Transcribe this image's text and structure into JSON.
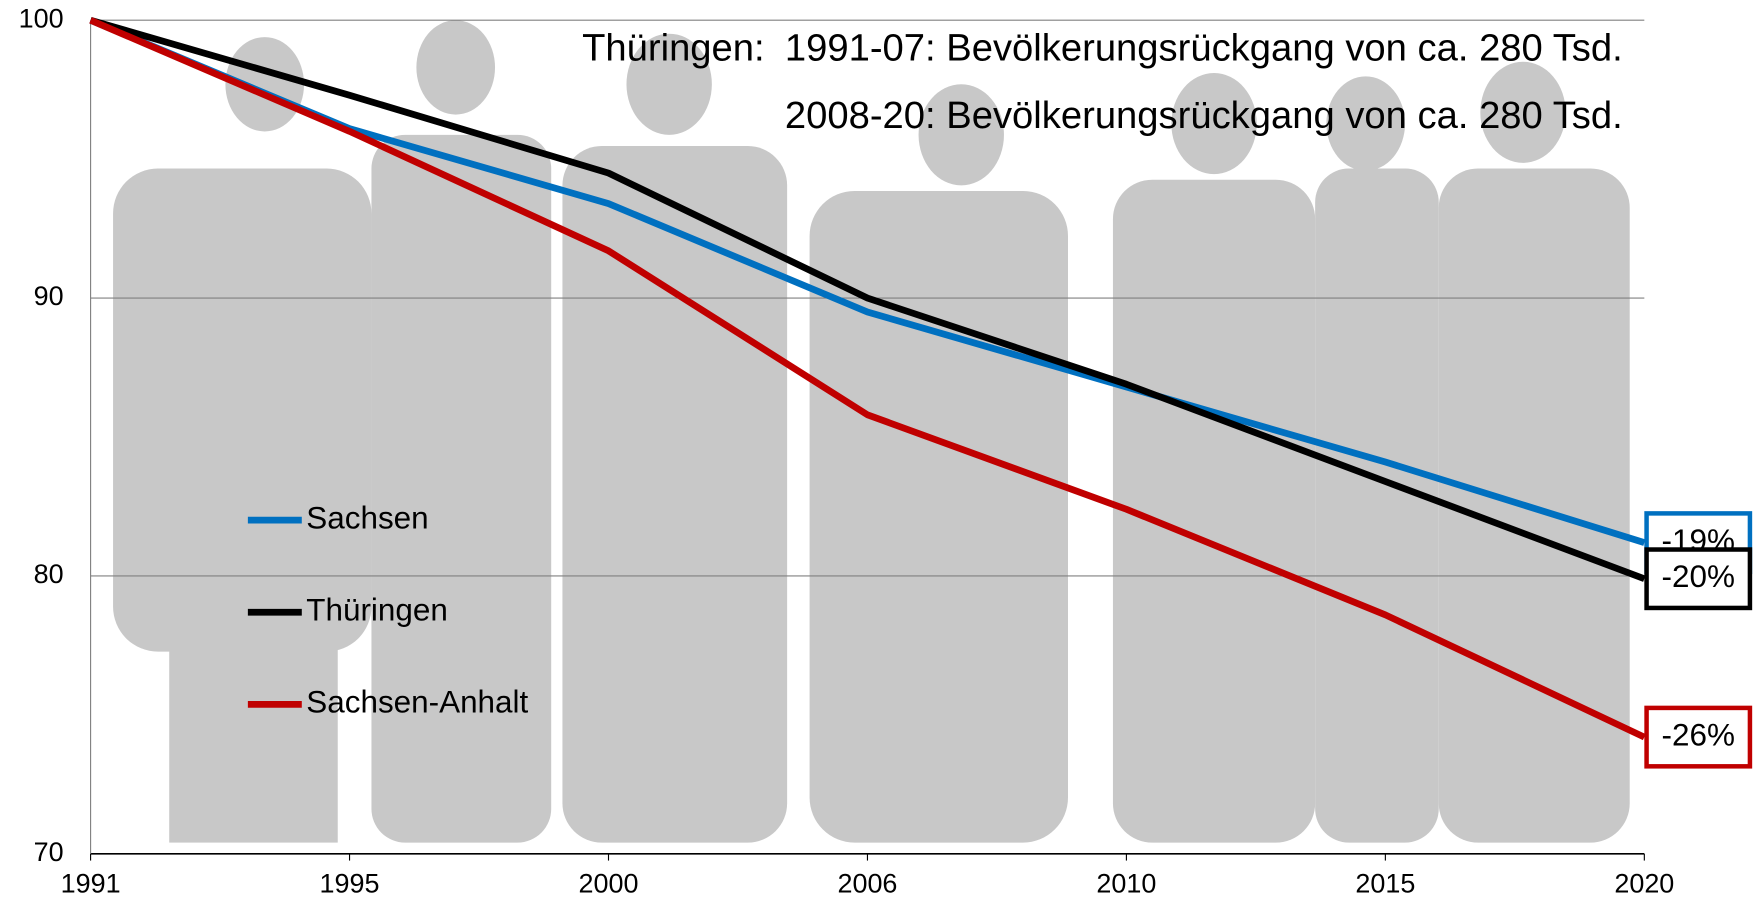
{
  "chart_data": {
    "type": "line",
    "categories": [
      "1991",
      "1995",
      "2000",
      "2006",
      "2010",
      "2015",
      "2020"
    ],
    "series": [
      {
        "name": "Sachsen",
        "color": "#0070c0",
        "values": [
          100,
          96.1,
          93.4,
          89.5,
          86.8,
          84.1,
          81.2
        ],
        "end_label": "-19%"
      },
      {
        "name": "Thüringen",
        "color": "#000000",
        "values": [
          100,
          97.3,
          94.5,
          90.0,
          86.9,
          83.4,
          79.9
        ],
        "end_label": "-20%"
      },
      {
        "name": "Sachsen-Anhalt",
        "color": "#c00000",
        "values": [
          100,
          96.0,
          91.7,
          85.8,
          82.4,
          78.6,
          74.2
        ],
        "end_label": "-26%"
      }
    ],
    "ylim": [
      70,
      100
    ],
    "yticks": [
      70,
      80,
      90,
      100
    ],
    "grid": true,
    "annotations": {
      "label": "Thüringen:",
      "lines": [
        "1991-07: Bevölkerungsrückgang von ca. 280 Tsd.",
        "2008-20: Bevölkerungsrückgang von ca. 280 Tsd."
      ]
    }
  }
}
